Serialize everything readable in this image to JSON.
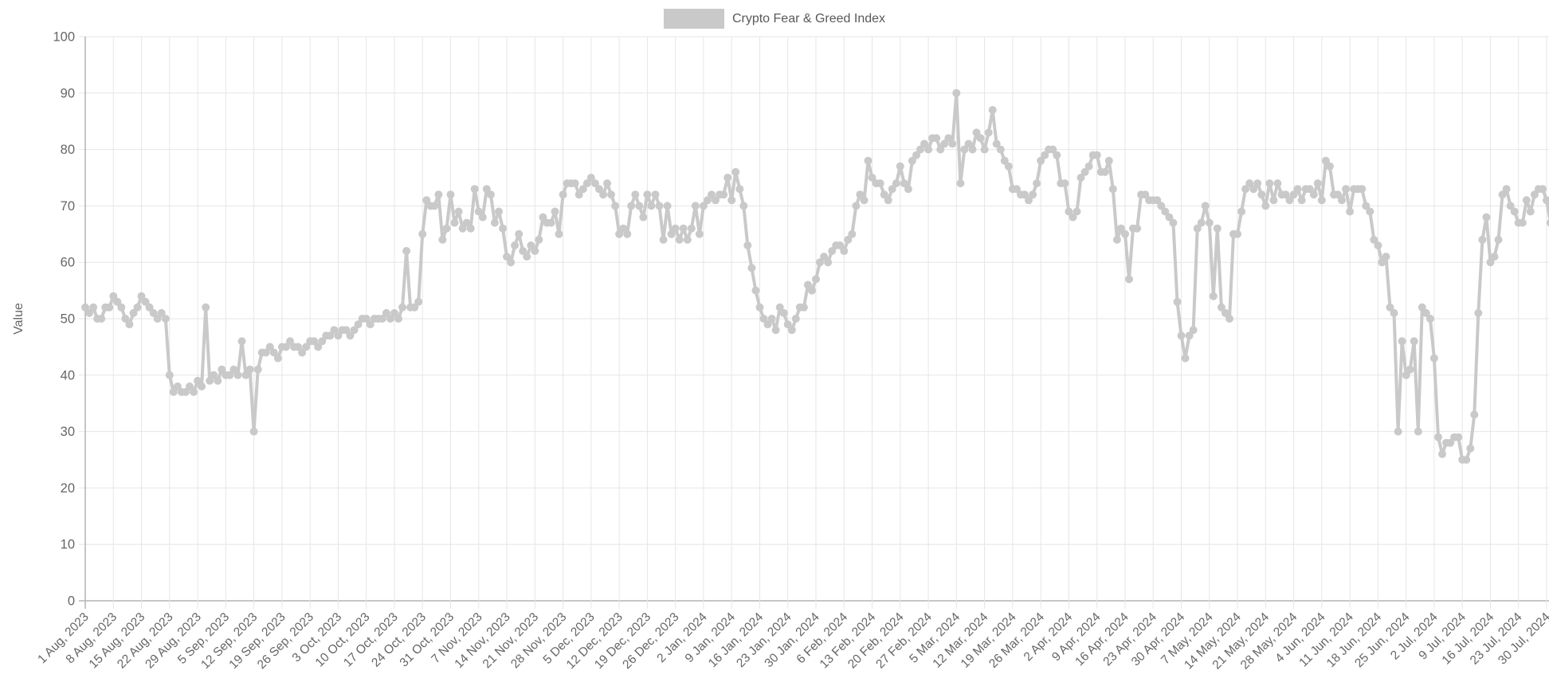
{
  "legend": {
    "label": "Crypto Fear & Greed Index"
  },
  "y_axis": {
    "title": "Value",
    "ticks": [
      0,
      10,
      20,
      30,
      40,
      50,
      60,
      70,
      80,
      90,
      100
    ]
  },
  "colors": {
    "line": "#c9c9c9",
    "marker": "#c9c9c9",
    "grid": "#e6e6e6",
    "axis": "#b3b3b3",
    "tick_text": "#666666",
    "legend_text": "#595959"
  },
  "chart_data": {
    "type": "line",
    "title": "Crypto Fear & Greed Index",
    "xlabel": "",
    "ylabel": "Value",
    "ylim": [
      0,
      100
    ],
    "grid": true,
    "legend_position": "top-center",
    "frequency": "daily",
    "start_date": "1 Aug, 2023",
    "end_date": "31 Jul, 2024",
    "x_tick_labels": [
      "1 Aug, 2023",
      "8 Aug, 2023",
      "15 Aug, 2023",
      "22 Aug, 2023",
      "29 Aug, 2023",
      "5 Sep, 2023",
      "12 Sep, 2023",
      "19 Sep, 2023",
      "26 Sep, 2023",
      "3 Oct, 2023",
      "10 Oct, 2023",
      "17 Oct, 2023",
      "24 Oct, 2023",
      "31 Oct, 2023",
      "7 Nov, 2023",
      "14 Nov, 2023",
      "21 Nov, 2023",
      "28 Nov, 2023",
      "5 Dec, 2023",
      "12 Dec, 2023",
      "19 Dec, 2023",
      "26 Dec, 2023",
      "2 Jan, 2024",
      "9 Jan, 2024",
      "16 Jan, 2024",
      "23 Jan, 2024",
      "30 Jan, 2024",
      "6 Feb, 2024",
      "13 Feb, 2024",
      "20 Feb, 2024",
      "27 Feb, 2024",
      "5 Mar, 2024",
      "12 Mar, 2024",
      "19 Mar, 2024",
      "26 Mar, 2024",
      "2 Apr, 2024",
      "9 Apr, 2024",
      "16 Apr, 2024",
      "23 Apr, 2024",
      "30 Apr, 2024",
      "7 May, 2024",
      "14 May, 2024",
      "21 May, 2024",
      "28 May, 2024",
      "4 Jun, 2024",
      "11 Jun, 2024",
      "18 Jun, 2024",
      "25 Jun, 2024",
      "2 Jul, 2024",
      "9 Jul, 2024",
      "16 Jul, 2024",
      "23 Jul, 2024",
      "30 Jul, 2024"
    ],
    "series": [
      {
        "name": "Crypto Fear & Greed Index",
        "values": [
          52,
          51,
          52,
          50,
          50,
          52,
          52,
          54,
          53,
          52,
          50,
          49,
          51,
          52,
          54,
          53,
          52,
          51,
          50,
          51,
          50,
          40,
          37,
          38,
          37,
          37,
          38,
          37,
          39,
          38,
          52,
          39,
          40,
          39,
          41,
          40,
          40,
          41,
          40,
          46,
          40,
          41,
          30,
          41,
          44,
          44,
          45,
          44,
          43,
          45,
          45,
          46,
          45,
          45,
          44,
          45,
          46,
          46,
          45,
          46,
          47,
          47,
          48,
          47,
          48,
          48,
          47,
          48,
          49,
          50,
          50,
          49,
          50,
          50,
          50,
          51,
          50,
          51,
          50,
          52,
          62,
          52,
          52,
          53,
          65,
          71,
          70,
          70,
          72,
          64,
          66,
          72,
          67,
          69,
          66,
          67,
          66,
          73,
          69,
          68,
          73,
          72,
          67,
          69,
          66,
          61,
          60,
          63,
          65,
          62,
          61,
          63,
          62,
          64,
          68,
          67,
          67,
          69,
          65,
          72,
          74,
          74,
          74,
          72,
          73,
          74,
          75,
          74,
          73,
          72,
          74,
          72,
          70,
          65,
          66,
          65,
          70,
          72,
          70,
          68,
          72,
          70,
          72,
          70,
          64,
          70,
          65,
          66,
          64,
          66,
          64,
          66,
          70,
          65,
          70,
          71,
          72,
          71,
          72,
          72,
          75,
          71,
          76,
          73,
          70,
          63,
          59,
          55,
          52,
          50,
          49,
          50,
          48,
          52,
          51,
          49,
          48,
          50,
          52,
          52,
          56,
          55,
          57,
          60,
          61,
          60,
          62,
          63,
          63,
          62,
          64,
          65,
          70,
          72,
          71,
          78,
          75,
          74,
          74,
          72,
          71,
          73,
          74,
          77,
          74,
          73,
          78,
          79,
          80,
          81,
          80,
          82,
          82,
          80,
          81,
          82,
          81,
          90,
          74,
          80,
          81,
          80,
          83,
          82,
          80,
          83,
          87,
          81,
          80,
          78,
          77,
          73,
          73,
          72,
          72,
          71,
          72,
          74,
          78,
          79,
          80,
          80,
          79,
          74,
          74,
          69,
          68,
          69,
          75,
          76,
          77,
          79,
          79,
          76,
          76,
          78,
          73,
          64,
          66,
          65,
          57,
          66,
          66,
          72,
          72,
          71,
          71,
          71,
          70,
          69,
          68,
          67,
          53,
          47,
          43,
          47,
          48,
          66,
          67,
          70,
          67,
          54,
          66,
          52,
          51,
          50,
          65,
          65,
          69,
          73,
          74,
          73,
          74,
          72,
          70,
          74,
          71,
          74,
          72,
          72,
          71,
          72,
          73,
          71,
          73,
          73,
          72,
          74,
          71,
          78,
          77,
          72,
          72,
          71,
          73,
          69,
          73,
          73,
          73,
          70,
          69,
          64,
          63,
          60,
          61,
          52,
          51,
          30,
          46,
          40,
          41,
          46,
          30,
          52,
          51,
          50,
          43,
          29,
          26,
          28,
          28,
          29,
          29,
          25,
          25,
          27,
          33,
          51,
          64,
          68,
          60,
          61,
          64,
          72,
          73,
          70,
          69,
          67,
          67,
          71,
          69,
          72,
          73,
          73,
          71,
          67
        ]
      }
    ]
  }
}
